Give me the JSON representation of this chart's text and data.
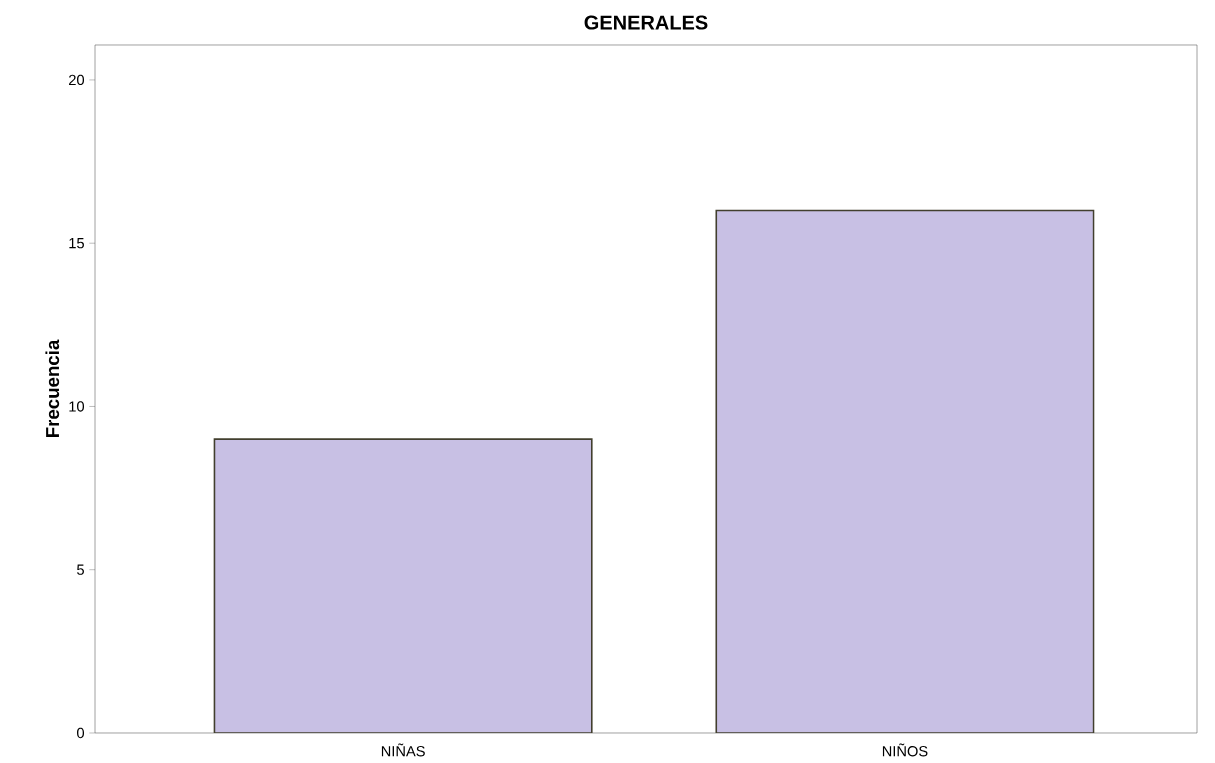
{
  "chart_data": {
    "type": "bar",
    "title": "GENERALES",
    "ylabel": "Frecuencia",
    "categories": [
      "NIÑAS",
      "NIÑOS"
    ],
    "values": [
      9,
      16
    ],
    "color": "#c8c0e4",
    "ylim": [
      0,
      21.07
    ],
    "yticks": [
      0,
      5,
      10,
      15,
      20
    ]
  }
}
